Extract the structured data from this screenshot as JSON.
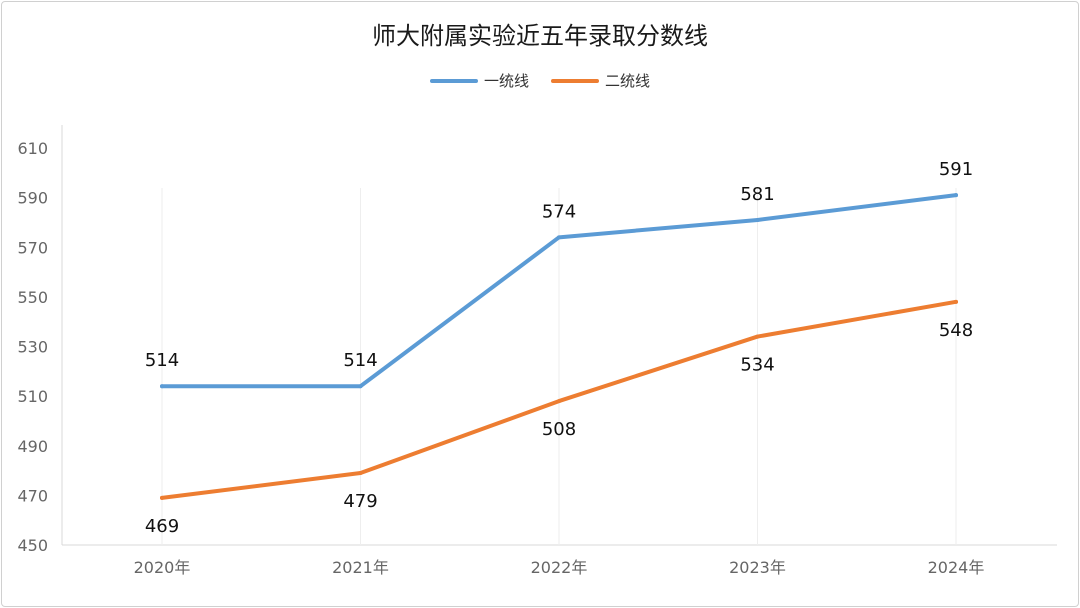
{
  "chart_data": {
    "type": "line",
    "title": "师大附属实验近五年录取分数线",
    "categories": [
      "2020年",
      "2021年",
      "2022年",
      "2023年",
      "2024年"
    ],
    "series": [
      {
        "name": "一统线",
        "color": "#5b9bd5",
        "values": [
          514,
          514,
          574,
          581,
          591
        ],
        "label_position": "above"
      },
      {
        "name": "二统线",
        "color": "#ed7d31",
        "values": [
          469,
          479,
          508,
          534,
          548
        ],
        "label_position": "below"
      }
    ],
    "ylim": [
      450,
      610
    ],
    "yticks": [
      450,
      470,
      490,
      510,
      530,
      550,
      570,
      590,
      610
    ],
    "legend": "top",
    "grid": "vertical"
  }
}
